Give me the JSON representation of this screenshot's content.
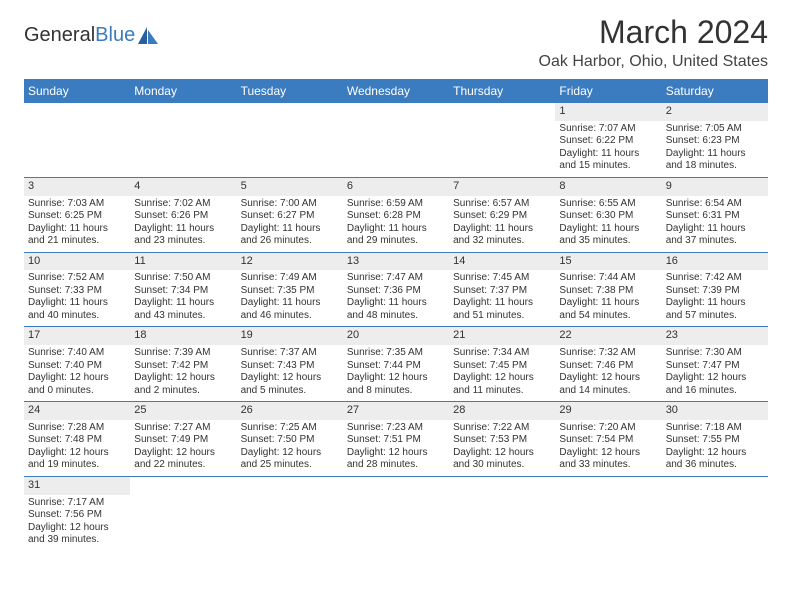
{
  "logo": {
    "text1": "General",
    "text2": "Blue"
  },
  "title": "March 2024",
  "location": "Oak Harbor, Ohio, United States",
  "weekdays": [
    "Sunday",
    "Monday",
    "Tuesday",
    "Wednesday",
    "Thursday",
    "Friday",
    "Saturday"
  ],
  "style": {
    "header_bg": "#3b7bbf",
    "header_fg": "#ffffff",
    "daynum_bg": "#ededed",
    "cell_border": "#3b7bbf",
    "body_font_size": 10,
    "title_font_size": 32,
    "location_font_size": 16
  },
  "weeks": [
    [
      null,
      null,
      null,
      null,
      null,
      {
        "n": "1",
        "sr": "Sunrise: 7:07 AM",
        "ss": "Sunset: 6:22 PM",
        "dl": "Daylight: 11 hours and 15 minutes."
      },
      {
        "n": "2",
        "sr": "Sunrise: 7:05 AM",
        "ss": "Sunset: 6:23 PM",
        "dl": "Daylight: 11 hours and 18 minutes."
      }
    ],
    [
      {
        "n": "3",
        "sr": "Sunrise: 7:03 AM",
        "ss": "Sunset: 6:25 PM",
        "dl": "Daylight: 11 hours and 21 minutes."
      },
      {
        "n": "4",
        "sr": "Sunrise: 7:02 AM",
        "ss": "Sunset: 6:26 PM",
        "dl": "Daylight: 11 hours and 23 minutes."
      },
      {
        "n": "5",
        "sr": "Sunrise: 7:00 AM",
        "ss": "Sunset: 6:27 PM",
        "dl": "Daylight: 11 hours and 26 minutes."
      },
      {
        "n": "6",
        "sr": "Sunrise: 6:59 AM",
        "ss": "Sunset: 6:28 PM",
        "dl": "Daylight: 11 hours and 29 minutes."
      },
      {
        "n": "7",
        "sr": "Sunrise: 6:57 AM",
        "ss": "Sunset: 6:29 PM",
        "dl": "Daylight: 11 hours and 32 minutes."
      },
      {
        "n": "8",
        "sr": "Sunrise: 6:55 AM",
        "ss": "Sunset: 6:30 PM",
        "dl": "Daylight: 11 hours and 35 minutes."
      },
      {
        "n": "9",
        "sr": "Sunrise: 6:54 AM",
        "ss": "Sunset: 6:31 PM",
        "dl": "Daylight: 11 hours and 37 minutes."
      }
    ],
    [
      {
        "n": "10",
        "sr": "Sunrise: 7:52 AM",
        "ss": "Sunset: 7:33 PM",
        "dl": "Daylight: 11 hours and 40 minutes."
      },
      {
        "n": "11",
        "sr": "Sunrise: 7:50 AM",
        "ss": "Sunset: 7:34 PM",
        "dl": "Daylight: 11 hours and 43 minutes."
      },
      {
        "n": "12",
        "sr": "Sunrise: 7:49 AM",
        "ss": "Sunset: 7:35 PM",
        "dl": "Daylight: 11 hours and 46 minutes."
      },
      {
        "n": "13",
        "sr": "Sunrise: 7:47 AM",
        "ss": "Sunset: 7:36 PM",
        "dl": "Daylight: 11 hours and 48 minutes."
      },
      {
        "n": "14",
        "sr": "Sunrise: 7:45 AM",
        "ss": "Sunset: 7:37 PM",
        "dl": "Daylight: 11 hours and 51 minutes."
      },
      {
        "n": "15",
        "sr": "Sunrise: 7:44 AM",
        "ss": "Sunset: 7:38 PM",
        "dl": "Daylight: 11 hours and 54 minutes."
      },
      {
        "n": "16",
        "sr": "Sunrise: 7:42 AM",
        "ss": "Sunset: 7:39 PM",
        "dl": "Daylight: 11 hours and 57 minutes."
      }
    ],
    [
      {
        "n": "17",
        "sr": "Sunrise: 7:40 AM",
        "ss": "Sunset: 7:40 PM",
        "dl": "Daylight: 12 hours and 0 minutes."
      },
      {
        "n": "18",
        "sr": "Sunrise: 7:39 AM",
        "ss": "Sunset: 7:42 PM",
        "dl": "Daylight: 12 hours and 2 minutes."
      },
      {
        "n": "19",
        "sr": "Sunrise: 7:37 AM",
        "ss": "Sunset: 7:43 PM",
        "dl": "Daylight: 12 hours and 5 minutes."
      },
      {
        "n": "20",
        "sr": "Sunrise: 7:35 AM",
        "ss": "Sunset: 7:44 PM",
        "dl": "Daylight: 12 hours and 8 minutes."
      },
      {
        "n": "21",
        "sr": "Sunrise: 7:34 AM",
        "ss": "Sunset: 7:45 PM",
        "dl": "Daylight: 12 hours and 11 minutes."
      },
      {
        "n": "22",
        "sr": "Sunrise: 7:32 AM",
        "ss": "Sunset: 7:46 PM",
        "dl": "Daylight: 12 hours and 14 minutes."
      },
      {
        "n": "23",
        "sr": "Sunrise: 7:30 AM",
        "ss": "Sunset: 7:47 PM",
        "dl": "Daylight: 12 hours and 16 minutes."
      }
    ],
    [
      {
        "n": "24",
        "sr": "Sunrise: 7:28 AM",
        "ss": "Sunset: 7:48 PM",
        "dl": "Daylight: 12 hours and 19 minutes."
      },
      {
        "n": "25",
        "sr": "Sunrise: 7:27 AM",
        "ss": "Sunset: 7:49 PM",
        "dl": "Daylight: 12 hours and 22 minutes."
      },
      {
        "n": "26",
        "sr": "Sunrise: 7:25 AM",
        "ss": "Sunset: 7:50 PM",
        "dl": "Daylight: 12 hours and 25 minutes."
      },
      {
        "n": "27",
        "sr": "Sunrise: 7:23 AM",
        "ss": "Sunset: 7:51 PM",
        "dl": "Daylight: 12 hours and 28 minutes."
      },
      {
        "n": "28",
        "sr": "Sunrise: 7:22 AM",
        "ss": "Sunset: 7:53 PM",
        "dl": "Daylight: 12 hours and 30 minutes."
      },
      {
        "n": "29",
        "sr": "Sunrise: 7:20 AM",
        "ss": "Sunset: 7:54 PM",
        "dl": "Daylight: 12 hours and 33 minutes."
      },
      {
        "n": "30",
        "sr": "Sunrise: 7:18 AM",
        "ss": "Sunset: 7:55 PM",
        "dl": "Daylight: 12 hours and 36 minutes."
      }
    ],
    [
      {
        "n": "31",
        "sr": "Sunrise: 7:17 AM",
        "ss": "Sunset: 7:56 PM",
        "dl": "Daylight: 12 hours and 39 minutes."
      },
      null,
      null,
      null,
      null,
      null,
      null
    ]
  ]
}
